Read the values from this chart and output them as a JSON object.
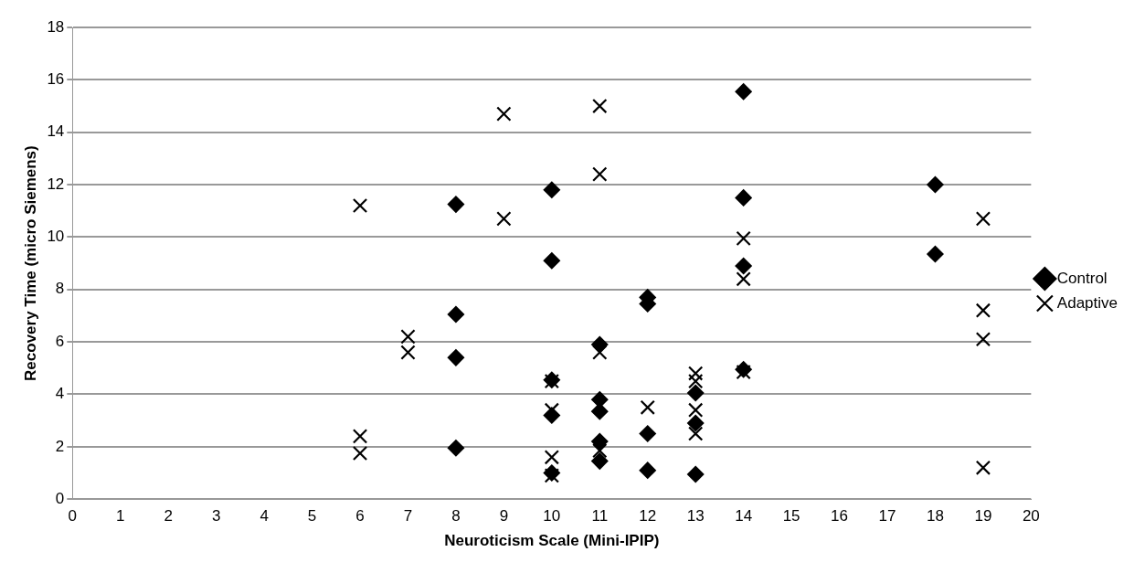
{
  "chart_data": {
    "type": "scatter",
    "xlabel": "Neuroticism Scale (Mini-IPIP)",
    "ylabel": "Recovery Time (micro Siemens)",
    "xlim": [
      0,
      20
    ],
    "xticks": [
      0,
      1,
      2,
      3,
      4,
      5,
      6,
      7,
      8,
      9,
      10,
      11,
      12,
      13,
      14,
      15,
      16,
      17,
      18,
      19,
      20
    ],
    "ylim": [
      0,
      18
    ],
    "yticks": [
      0,
      2,
      4,
      6,
      8,
      10,
      12,
      14,
      16,
      18
    ],
    "grid": "y",
    "legend": "right",
    "series": [
      {
        "name": "Control",
        "color": "#000000",
        "marker": "diamond",
        "x": [
          8,
          8,
          8,
          8,
          10,
          10,
          10,
          10,
          10,
          11,
          11,
          11,
          11,
          11,
          12,
          12,
          12,
          12,
          13,
          13,
          13,
          14,
          14,
          14,
          14,
          18,
          18
        ],
        "values": [
          11.25,
          7.05,
          5.4,
          1.95,
          11.8,
          9.1,
          4.55,
          3.2,
          1.0,
          5.9,
          3.8,
          3.35,
          2.2,
          1.45,
          7.7,
          7.45,
          2.5,
          1.1,
          4.05,
          2.9,
          0.95,
          15.55,
          11.5,
          8.9,
          4.95,
          12.0,
          9.35
        ]
      },
      {
        "name": "Adaptive",
        "color": "#000000",
        "marker": "cross",
        "x": [
          6,
          6,
          6,
          7,
          7,
          9,
          9,
          10,
          10,
          10,
          10,
          11,
          11,
          11,
          11,
          12,
          13,
          13,
          13,
          13,
          14,
          14,
          14,
          19,
          19,
          19,
          19
        ],
        "values": [
          11.2,
          2.4,
          1.75,
          6.2,
          5.6,
          14.7,
          10.7,
          4.5,
          3.4,
          1.6,
          0.9,
          15.0,
          12.4,
          5.6,
          1.85,
          3.5,
          4.8,
          4.5,
          3.4,
          2.5,
          9.95,
          8.4,
          4.85,
          10.7,
          7.2,
          6.1,
          1.2
        ]
      }
    ]
  }
}
